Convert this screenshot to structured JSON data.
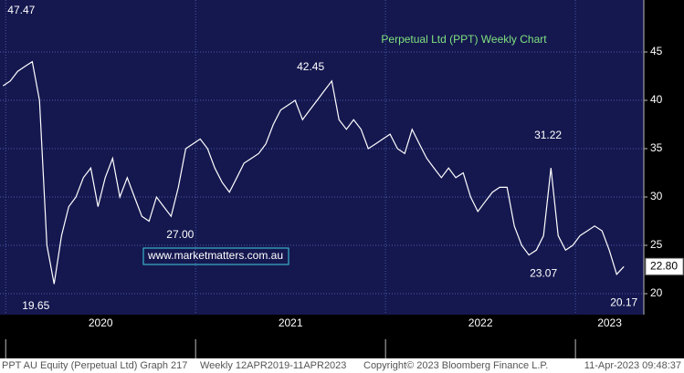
{
  "chart_data": {
    "type": "line",
    "title": "Perpetual Ltd (PPT) Weekly Chart",
    "source": "www.marketmatters.com.au",
    "footer": [
      "PPT AU Equity (Perpetual Ltd) Graph 217",
      "Weekly 12APR2019-11APR2023",
      "Copyright© 2023 Bloomberg Finance L.P.",
      "11-Apr-2023 09:48:37"
    ],
    "last_price": {
      "value": 22.8,
      "label": "22.80"
    },
    "annotations": [
      {
        "label": "47.47",
        "value": 47.47,
        "x": 2020.159
      },
      {
        "label": "42.45",
        "value": 42.45,
        "x": 2021.697
      },
      {
        "label": "27.00",
        "value": 27,
        "x": 2020.861
      },
      {
        "label": "19.65",
        "value": 19.65,
        "x": 2020.255
      },
      {
        "label": "31.22",
        "value": 31.22,
        "x": 2022.87
      },
      {
        "label": "23.07",
        "value": 23.07,
        "x": 2022.774
      },
      {
        "label": "20.17",
        "value": 20.17,
        "x": 2023.236
      }
    ],
    "x": [
      2019.986,
      2020.024,
      2020.063,
      2020.101,
      2020.14,
      2020.178,
      2020.217,
      2020.255,
      2020.294,
      2020.332,
      2020.37,
      2020.409,
      2020.448,
      2020.486,
      2020.524,
      2020.563,
      2020.601,
      2020.64,
      2020.678,
      2020.717,
      2020.755,
      2020.794,
      2020.832,
      2020.871,
      2020.909,
      2020.948,
      2020.986,
      2021.024,
      2021.063,
      2021.101,
      2021.14,
      2021.178,
      2021.217,
      2021.255,
      2021.294,
      2021.332,
      2021.37,
      2021.409,
      2021.448,
      2021.486,
      2021.524,
      2021.563,
      2021.601,
      2021.64,
      2021.678,
      2021.717,
      2021.755,
      2021.794,
      2021.832,
      2021.871,
      2021.909,
      2021.948,
      2021.986,
      2022.024,
      2022.063,
      2022.101,
      2022.14,
      2022.178,
      2022.217,
      2022.255,
      2022.294,
      2022.332,
      2022.37,
      2022.409,
      2022.448,
      2022.486,
      2022.524,
      2022.563,
      2022.601,
      2022.64,
      2022.678,
      2022.717,
      2022.755,
      2022.794,
      2022.832,
      2022.871,
      2022.909,
      2022.948,
      2022.986,
      2023.024,
      2023.063,
      2023.101,
      2023.14,
      2023.178,
      2023.217,
      2023.255
    ],
    "series": [
      {
        "name": "PPT AU Equity",
        "color": "#ffffff",
        "values": [
          41.5,
          42,
          43,
          43.5,
          44,
          40,
          25,
          21,
          26,
          29,
          30,
          32,
          33,
          29,
          32,
          34,
          30,
          32,
          30,
          28,
          27.5,
          30,
          29,
          28,
          31,
          35,
          35.5,
          36,
          35,
          33,
          31.5,
          30.5,
          32,
          33.5,
          34,
          34.5,
          35.5,
          37.5,
          39,
          39.5,
          40,
          38,
          39,
          40,
          41,
          42,
          38,
          37,
          38,
          37,
          35,
          35.5,
          36,
          36.5,
          35,
          34.5,
          37,
          35.5,
          34,
          33,
          32,
          33,
          32,
          32.5,
          30,
          28.5,
          29.5,
          30.5,
          31,
          31,
          27,
          25,
          24,
          24.5,
          26,
          33,
          26,
          24.5,
          25,
          26,
          26.5,
          27,
          26.5,
          24.5,
          22,
          22.8
        ]
      }
    ],
    "xlim": [
      2019.97,
      2023.36
    ],
    "xticks": [
      2020,
      2021,
      2022,
      2023
    ],
    "ylim": [
      18.49,
      50.38
    ],
    "yticks": [
      20,
      25,
      30,
      35,
      40,
      45
    ],
    "grid": true
  }
}
